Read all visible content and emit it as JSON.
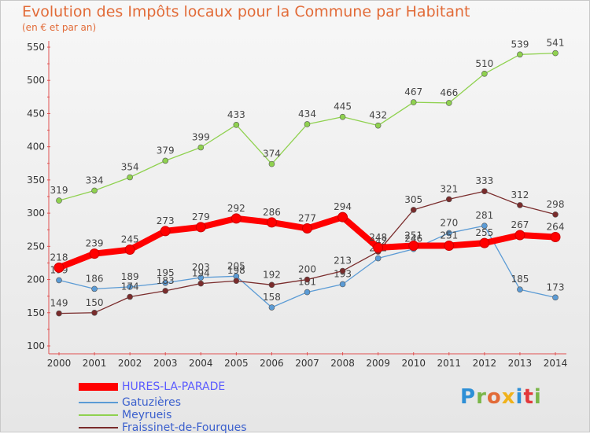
{
  "title": "Evolution des Impôts locaux pour la Commune par Habitant",
  "subtitle": "(en € et par an)",
  "logo": [
    "P",
    "r",
    "o",
    "x",
    "i",
    "t",
    "i"
  ],
  "logo_colors": [
    "#2d8fd6",
    "#7ab648",
    "#e26b38",
    "#f0b21c",
    "#2d8fd6",
    "#e2383b",
    "#7ab648"
  ],
  "chart_data": {
    "type": "line",
    "x": [
      2000,
      2001,
      2002,
      2003,
      2004,
      2005,
      2006,
      2007,
      2008,
      2009,
      2010,
      2011,
      2012,
      2013,
      2014
    ],
    "ylim": [
      100,
      550
    ],
    "yticks": [
      100,
      150,
      200,
      250,
      300,
      350,
      400,
      450,
      500,
      550
    ],
    "grid": false,
    "legend_position": "bottom-left",
    "series": [
      {
        "name": "HURES-LA-PARADE",
        "color": "#ff0000",
        "values": [
          218,
          239,
          245,
          273,
          279,
          292,
          286,
          277,
          294,
          248,
          251,
          251,
          255,
          267,
          264
        ]
      },
      {
        "name": "Gatuzières",
        "color": "#5b9bd5",
        "values": [
          199,
          186,
          189,
          195,
          203,
          205,
          158,
          181,
          193,
          232,
          246,
          270,
          281,
          185,
          173
        ]
      },
      {
        "name": "Meyrueis",
        "color": "#8fd14f",
        "values": [
          319,
          334,
          354,
          379,
          399,
          433,
          374,
          434,
          445,
          432,
          467,
          466,
          510,
          539,
          541
        ]
      },
      {
        "name": "Fraissinet-de-Fourques",
        "color": "#7a2c2c",
        "values": [
          149,
          150,
          174,
          183,
          194,
          198,
          192,
          200,
          213,
          242,
          305,
          321,
          333,
          312,
          298
        ]
      }
    ]
  }
}
